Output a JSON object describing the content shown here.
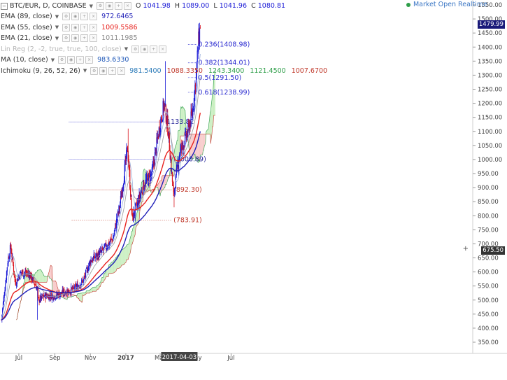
{
  "symbol": "BTC/EUR, D, COINBASE",
  "ohlc": {
    "o_label": "O",
    "o": "1041.98",
    "h_label": "H",
    "h": "1089.00",
    "l_label": "L",
    "l": "1041.96",
    "c_label": "C",
    "c": "1080.81"
  },
  "market_status": "Market Open Realtime",
  "indicators": [
    {
      "name": "EMA (89, close)",
      "values": [
        "972.6465"
      ],
      "colors": [
        "#1f1fb8"
      ],
      "muted": false
    },
    {
      "name": "EMA (55, close)",
      "values": [
        "1009.5586"
      ],
      "colors": [
        "#e8231f"
      ],
      "muted": false
    },
    {
      "name": "EMA (21, close)",
      "values": [
        "1011.1985"
      ],
      "colors": [
        "#8a8a8a"
      ],
      "muted": false
    },
    {
      "name": "Lin Reg (2, -2, true, true, 100, close)",
      "values": [],
      "colors": [],
      "muted": true
    },
    {
      "name": "MA (10, close)",
      "values": [
        "983.6330"
      ],
      "colors": [
        "#1f58b8"
      ],
      "muted": false
    },
    {
      "name": "Ichimoku (9, 26, 52, 26)",
      "values": [
        "981.5400",
        "1088.3350",
        "1243.3400",
        "1121.4500",
        "1007.6700"
      ],
      "colors": [
        "#2a7ab8",
        "#c0392b",
        "#2e9e49",
        "#2e9e49",
        "#c0392b"
      ],
      "muted": false
    }
  ],
  "price_tags": {
    "last": "1479.99",
    "crosshair": "675.50"
  },
  "crosshair_date": "2017-04-03",
  "colors": {
    "up": "#1a1ad6",
    "down": "#d8141e",
    "ema89": "#1f1fb8",
    "ema55": "#e8231f",
    "ema21": "#9a9a9a",
    "ma10": "#8fa8d8",
    "fib": "#2a2ad0",
    "fib_red": "#c0392b",
    "cloud_green": "#c9efc0",
    "cloud_red": "#f8c9c9"
  },
  "chart_data": {
    "type": "candlestick",
    "y_axis": {
      "range": [
        350,
        1550
      ],
      "ticks": [
        350,
        400,
        450,
        500,
        550,
        600,
        650,
        700,
        750,
        800,
        850,
        900,
        950,
        1000,
        1050,
        1100,
        1150,
        1200,
        1250,
        1300,
        1350,
        1400,
        1450,
        1500,
        1550
      ]
    },
    "x_axis": {
      "ticks": [
        "Jul",
        "Sep",
        "Nov",
        "2017",
        "Mar",
        "May",
        "Jul"
      ],
      "range": [
        "2016-06-01",
        "2017-07-15"
      ]
    },
    "fib_levels": [
      {
        "label": "0.236(1408.98)",
        "value": 1408.98
      },
      {
        "label": "0.382(1344.01)",
        "value": 1344.01
      },
      {
        "label": "0.5(1291.50)",
        "value": 1291.5
      },
      {
        "label": "0.618(1238.99)",
        "value": 1238.99
      }
    ],
    "annotations": [
      {
        "label": "1133.82",
        "value": 1133.82
      },
      {
        "label": "(1000.89)",
        "value": 1000.89
      },
      {
        "label": "(892.30)",
        "value": 892.3
      },
      {
        "label": "(783.91)",
        "value": 783.91
      }
    ],
    "price_anchors": [
      [
        "2016-06-01",
        430
      ],
      [
        "2016-06-12",
        640
      ],
      [
        "2016-06-17",
        690
      ],
      [
        "2016-06-25",
        560
      ],
      [
        "2016-07-05",
        600
      ],
      [
        "2016-07-20",
        590
      ],
      [
        "2016-08-02",
        540
      ],
      [
        "2016-08-03",
        500
      ],
      [
        "2016-08-15",
        515
      ],
      [
        "2016-09-01",
        515
      ],
      [
        "2016-09-20",
        530
      ],
      [
        "2016-10-05",
        540
      ],
      [
        "2016-10-20",
        570
      ],
      [
        "2016-11-01",
        640
      ],
      [
        "2016-11-20",
        670
      ],
      [
        "2016-12-10",
        720
      ],
      [
        "2016-12-22",
        840
      ],
      [
        "2017-01-04",
        1040
      ],
      [
        "2017-01-12",
        790
      ],
      [
        "2017-01-20",
        835
      ],
      [
        "2017-02-01",
        910
      ],
      [
        "2017-02-15",
        950
      ],
      [
        "2017-03-01",
        1130
      ],
      [
        "2017-03-08",
        1200
      ],
      [
        "2017-03-15",
        1100
      ],
      [
        "2017-03-24",
        870
      ],
      [
        "2017-04-03",
        1020
      ],
      [
        "2017-04-15",
        1080
      ],
      [
        "2017-04-25",
        1160
      ],
      [
        "2017-05-01",
        1280
      ],
      [
        "2017-05-06",
        1420
      ],
      [
        "2017-05-09",
        1480
      ]
    ]
  }
}
